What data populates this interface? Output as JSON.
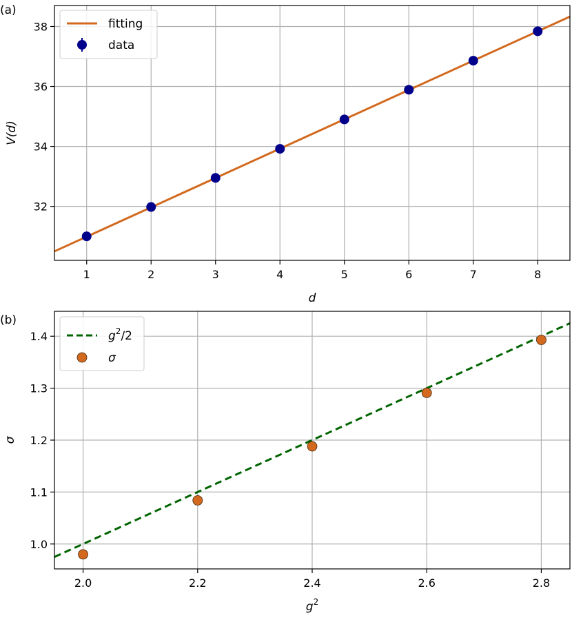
{
  "chart_data": [
    {
      "panel_label": "(a)",
      "type": "scatter",
      "xlabel": "d",
      "ylabel": "V(d)",
      "xlim": [
        0.5,
        8.5
      ],
      "ylim": [
        30.2,
        38.7
      ],
      "xticks": [
        1,
        2,
        3,
        4,
        5,
        6,
        7,
        8
      ],
      "yticks": [
        32,
        34,
        36,
        38
      ],
      "grid": true,
      "legend_position": "top-left",
      "series": [
        {
          "name": "fitting",
          "kind": "line",
          "style": "solid",
          "color": "#d2691e",
          "x": [
            0.5,
            8.5
          ],
          "y": [
            30.5,
            38.33
          ]
        },
        {
          "name": "data",
          "kind": "errorbar-points",
          "color": "#00008b",
          "x": [
            1,
            2,
            3,
            4,
            5,
            6,
            7,
            8
          ],
          "y": [
            31.0,
            31.98,
            32.95,
            33.92,
            34.9,
            35.89,
            36.86,
            37.84
          ]
        }
      ]
    },
    {
      "panel_label": "(b)",
      "type": "scatter",
      "xlabel": "g",
      "xlabel_sup": "2",
      "ylabel": "σ",
      "xlim": [
        1.95,
        2.85
      ],
      "ylim": [
        0.952,
        1.448
      ],
      "xticks": [
        2.0,
        2.2,
        2.4,
        2.6,
        2.8
      ],
      "xtick_labels": [
        "2.0",
        "2.2",
        "2.4",
        "2.6",
        "2.8"
      ],
      "yticks": [
        1.0,
        1.1,
        1.2,
        1.3,
        1.4
      ],
      "ytick_labels": [
        "1.0",
        "1.1",
        "1.2",
        "1.3",
        "1.4"
      ],
      "grid": true,
      "legend_position": "top-left",
      "series": [
        {
          "name": "g",
          "name_sup": "2",
          "name_suffix": "/2",
          "kind": "line",
          "style": "dashed",
          "color": "#006400",
          "x": [
            1.95,
            2.85
          ],
          "y": [
            0.975,
            1.425
          ]
        },
        {
          "name": "σ",
          "kind": "points",
          "color": "#d2691e",
          "edge_color": "#4a2a10",
          "x": [
            2.0,
            2.2,
            2.4,
            2.6,
            2.8
          ],
          "y": [
            0.98,
            1.084,
            1.188,
            1.291,
            1.393
          ]
        }
      ]
    }
  ]
}
